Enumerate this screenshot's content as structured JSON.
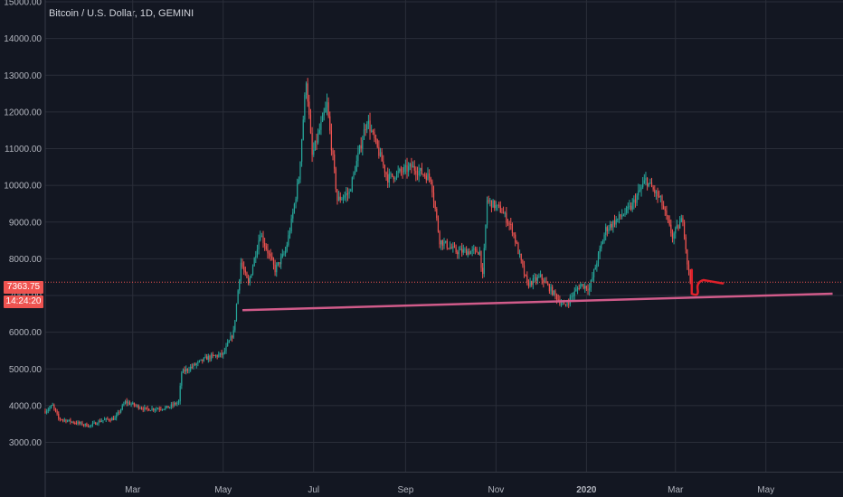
{
  "chart_data": {
    "type": "candlestick",
    "title": "Bitcoin / U.S. Dollar, 1D, GEMINI",
    "x_tick_labels": [
      "Mar",
      "May",
      "Jul",
      "Sep",
      "Nov",
      "2020",
      "Mar",
      "May"
    ],
    "x_tick_dates": [
      "2019-03-01",
      "2019-05-01",
      "2019-07-01",
      "2019-09-01",
      "2019-11-01",
      "2020-01-01",
      "2020-03-01",
      "2020-05-01"
    ],
    "y_tick_labels": [
      "15000.00",
      "14000.00",
      "13000.00",
      "12000.00",
      "11000.00",
      "10000.00",
      "9000.00",
      "8000.00",
      "7000.00",
      "6000.00",
      "5000.00",
      "4000.00",
      "3000.00"
    ],
    "ylim": [
      2200,
      15050
    ],
    "x_range": [
      "2019-01-01",
      "2020-06-22"
    ],
    "grid": true,
    "current_price": "7363.75",
    "countdown": "14:24:20",
    "colors": {
      "background": "#131722",
      "up": "#26a69a",
      "down": "#ef5350",
      "grid": "#2a2e39",
      "support_line": "#d15b8a",
      "current_price_line": "#ef5350",
      "drawing": "#e0202a"
    },
    "closes": [
      [
        "2019-01-01",
        3850
      ],
      [
        "2019-01-06",
        4000
      ],
      [
        "2019-01-10",
        3650
      ],
      [
        "2019-01-20",
        3550
      ],
      [
        "2019-01-31",
        3450
      ],
      [
        "2019-02-08",
        3600
      ],
      [
        "2019-02-17",
        3650
      ],
      [
        "2019-02-24",
        4100
      ],
      [
        "2019-03-10",
        3900
      ],
      [
        "2019-03-25",
        3950
      ],
      [
        "2019-04-01",
        4100
      ],
      [
        "2019-04-03",
        4900
      ],
      [
        "2019-04-20",
        5300
      ],
      [
        "2019-05-01",
        5400
      ],
      [
        "2019-05-08",
        6000
      ],
      [
        "2019-05-13",
        7900
      ],
      [
        "2019-05-18",
        7300
      ],
      [
        "2019-05-26",
        8700
      ],
      [
        "2019-06-05",
        7700
      ],
      [
        "2019-06-12",
        8200
      ],
      [
        "2019-06-16",
        9000
      ],
      [
        "2019-06-21",
        10200
      ],
      [
        "2019-06-26",
        12900
      ],
      [
        "2019-06-30",
        10800
      ],
      [
        "2019-07-05",
        11500
      ],
      [
        "2019-07-10",
        12200
      ],
      [
        "2019-07-17",
        9600
      ],
      [
        "2019-07-25",
        9800
      ],
      [
        "2019-08-06",
        11800
      ],
      [
        "2019-08-20",
        10200
      ],
      [
        "2019-09-05",
        10500
      ],
      [
        "2019-09-18",
        10200
      ],
      [
        "2019-09-24",
        8500
      ],
      [
        "2019-10-05",
        8200
      ],
      [
        "2019-10-21",
        8200
      ],
      [
        "2019-10-23",
        7500
      ],
      [
        "2019-10-26",
        9600
      ],
      [
        "2019-11-05",
        9300
      ],
      [
        "2019-11-12",
        8800
      ],
      [
        "2019-11-22",
        7300
      ],
      [
        "2019-12-01",
        7500
      ],
      [
        "2019-12-17",
        6700
      ],
      [
        "2019-12-28",
        7300
      ],
      [
        "2020-01-03",
        7200
      ],
      [
        "2020-01-14",
        8800
      ],
      [
        "2020-01-31",
        9400
      ],
      [
        "2020-02-10",
        10150
      ],
      [
        "2020-02-20",
        9600
      ],
      [
        "2020-02-28",
        8600
      ],
      [
        "2020-03-06",
        9100
      ],
      [
        "2020-03-09",
        7900
      ],
      [
        "2020-03-11",
        7363.75
      ]
    ],
    "support_line": [
      [
        "2019-05-14",
        6600
      ],
      [
        "2020-06-15",
        7050
      ]
    ],
    "hand_drawn_projection": [
      [
        "2020-03-12",
        7050
      ],
      [
        "2020-03-20",
        7420
      ],
      [
        "2020-04-02",
        7330
      ]
    ]
  }
}
